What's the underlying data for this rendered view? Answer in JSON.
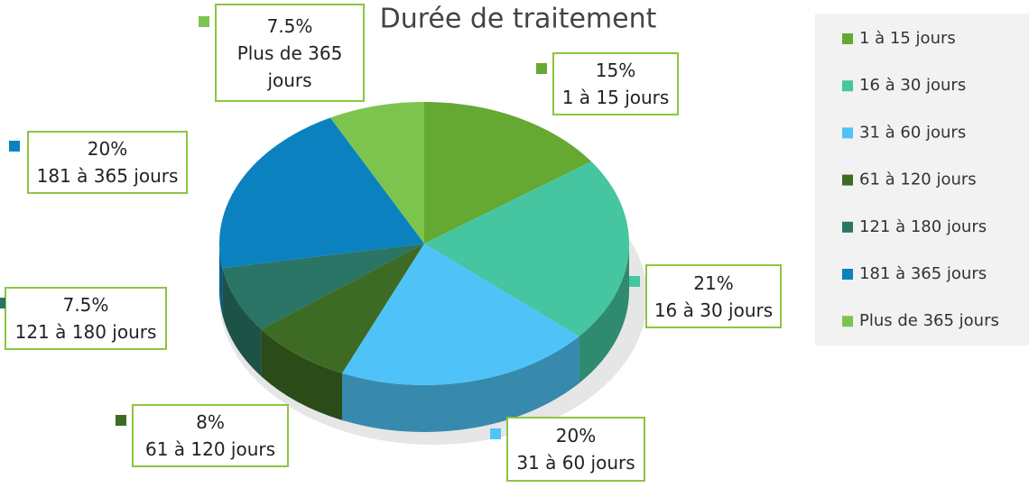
{
  "chart_data": {
    "type": "pie3d",
    "title": "Durée de traitement",
    "categories": [
      "1 à 15 jours",
      "16 à 30 jours",
      "31 à 60 jours",
      "61 à 120 jours",
      "121 à 180 jours",
      "181 à 365 jours",
      "Plus de 365 jours"
    ],
    "values": [
      15,
      21,
      20,
      8,
      7.5,
      20,
      7.5
    ],
    "value_labels": [
      "15%",
      "21%",
      "20%",
      "8%",
      "7.5%",
      "20%",
      "7.5%"
    ],
    "colors": [
      "#65a832",
      "#45c5a0",
      "#4fc3f7",
      "#3e6b24",
      "#2a7565",
      "#0b82bf",
      "#7dc44e"
    ],
    "legend": "right"
  }
}
